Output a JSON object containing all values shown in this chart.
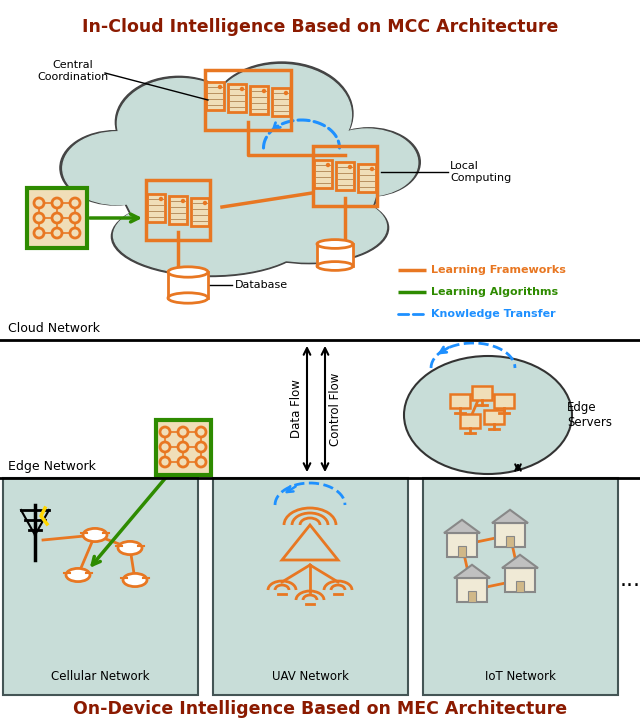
{
  "title_top": "In-Cloud Intelligence Based on MCC Architecture",
  "title_bottom": "On-Device Intelligence Based on MEC Architecture",
  "title_color": "#8B1A00",
  "orange_color": "#E87722",
  "green_color": "#2E8B00",
  "blue_dash_color": "#1E90FF",
  "cloud_bg": "#C8DDD8",
  "box_bg": "#C8DDD8",
  "legend_items": [
    {
      "label": "Learning Frameworks",
      "color": "#E87722",
      "style": "solid"
    },
    {
      "label": "Learning Algorithms",
      "color": "#2E8B00",
      "style": "solid"
    },
    {
      "label": "Knowledge Transfer",
      "color": "#1E90FF",
      "style": "dashed"
    }
  ],
  "cloud_network_label": "Cloud Network",
  "edge_network_label": "Edge Network",
  "central_coord_label": "Central\nCoordination",
  "local_computing_label": "Local\nComputing",
  "database_label": "Database",
  "edge_servers_label": "Edge\nServers",
  "data_flow_label": "Data Flow",
  "control_flow_label": "Control Flow",
  "cellular_label": "Cellular Network",
  "uav_label": "UAV Network",
  "iot_label": "IoT Network"
}
